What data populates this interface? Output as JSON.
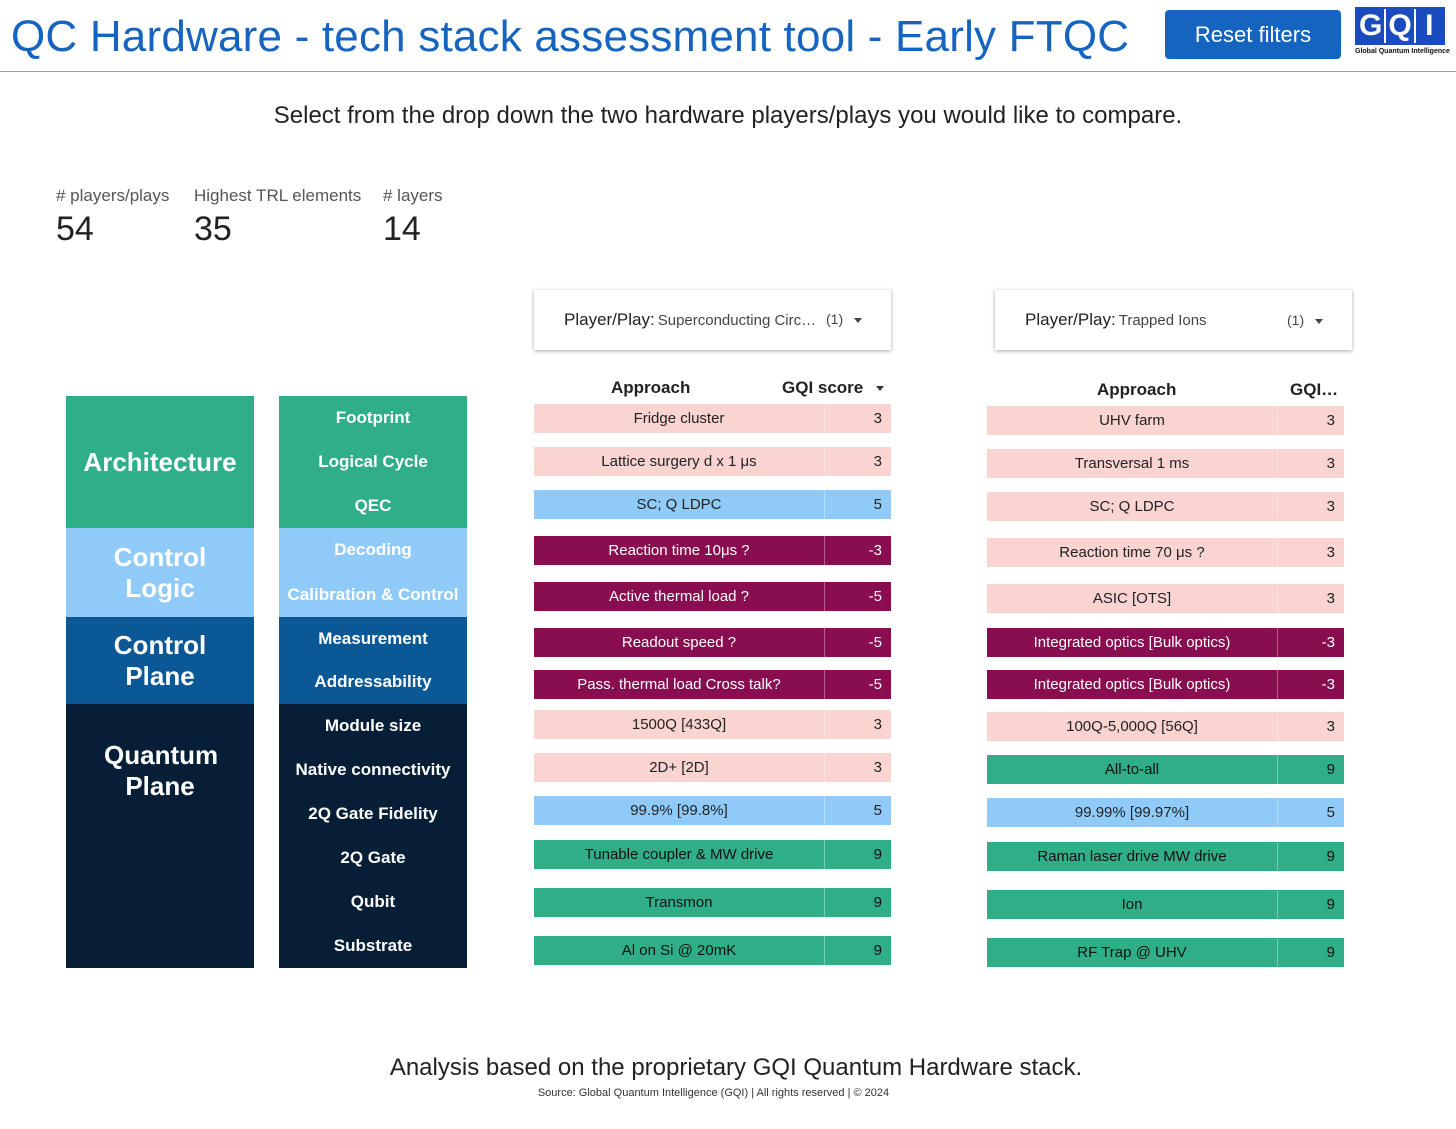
{
  "header": {
    "title": "QC Hardware - tech stack assessment tool - Early FTQC",
    "reset_label": "Reset filters",
    "logo_letters": [
      "G",
      "Q",
      "I"
    ],
    "logo_subtitle": "Global Quantum Intelligence"
  },
  "instruction": "Select from the drop down the two hardware players/plays you would like to compare.",
  "kpis": [
    {
      "label": "# players/plays",
      "value": "54"
    },
    {
      "label": "Highest TRL elements",
      "value": "35"
    },
    {
      "label": "# layers",
      "value": "14"
    }
  ],
  "stack": {
    "layers": [
      {
        "label": "Architecture",
        "sublayers": [
          "Footprint",
          "Logical Cycle",
          "QEC"
        ],
        "color": "#2fae87"
      },
      {
        "label": "Control Logic",
        "sublayers": [
          "Decoding",
          "Calibration & Control"
        ],
        "color": "#90caf9"
      },
      {
        "label": "Control Plane",
        "sublayers": [
          "Measurement",
          "Addressability"
        ],
        "color": "#0a5896"
      },
      {
        "label": "Quantum Plane",
        "sublayers": [
          "Module size",
          "Native connectivity",
          "2Q Gate Fidelity",
          "2Q Gate",
          "Qubit",
          "Substrate"
        ],
        "color": "#061e36"
      }
    ]
  },
  "colors": {
    "accent": "#1565c0",
    "score_low": "#fad4d0",
    "score_mid": "#90caf9",
    "score_negative": "#880e4f",
    "score_high": "#2fae87"
  },
  "left_panel": {
    "selector": {
      "prefix": "Player/Play",
      "value": "Superconducting Circ…",
      "count": "(1)"
    },
    "headers": {
      "approach": "Approach",
      "score": "GQI score"
    },
    "rows": [
      {
        "approach": "Fridge cluster",
        "score": "3"
      },
      {
        "approach": "Lattice surgery d x 1 μs",
        "score": "3"
      },
      {
        "approach": "SC; Q LDPC",
        "score": "5"
      },
      {
        "approach": "Reaction time 10μs ?",
        "score": "-3"
      },
      {
        "approach": "Active thermal load ?",
        "score": "-5"
      },
      {
        "approach": "Readout speed ?",
        "score": "-5"
      },
      {
        "approach": "Pass. thermal load Cross talk?",
        "score": "-5"
      },
      {
        "approach": "1500Q [433Q]",
        "score": "3"
      },
      {
        "approach": "2D+ [2D]",
        "score": "3"
      },
      {
        "approach": "99.9% [99.8%]",
        "score": "5"
      },
      {
        "approach": "Tunable coupler & MW drive",
        "score": "9"
      },
      {
        "approach": "Transmon",
        "score": "9"
      },
      {
        "approach": "Al on Si @ 20mK",
        "score": "9"
      }
    ]
  },
  "right_panel": {
    "selector": {
      "prefix": "Player/Play",
      "value": "Trapped Ions",
      "count": "(1)"
    },
    "headers": {
      "approach": "Approach",
      "score": "GQI…"
    },
    "rows": [
      {
        "approach": "UHV farm",
        "score": "3"
      },
      {
        "approach": "Transversal 1 ms",
        "score": "3"
      },
      {
        "approach": "SC; Q LDPC",
        "score": "3"
      },
      {
        "approach": "Reaction time 70 μs ?",
        "score": "3"
      },
      {
        "approach": "ASIC [OTS]",
        "score": "3"
      },
      {
        "approach": "Integrated optics [Bulk optics)",
        "score": "-3"
      },
      {
        "approach": "Integrated optics [Bulk optics)",
        "score": "-3"
      },
      {
        "approach": "100Q-5,000Q [56Q]",
        "score": "3"
      },
      {
        "approach": "All-to-all",
        "score": "9"
      },
      {
        "approach": "99.99% [99.97%]",
        "score": "5"
      },
      {
        "approach": "Raman laser drive MW drive",
        "score": "9"
      },
      {
        "approach": "Ion",
        "score": "9"
      },
      {
        "approach": "RF Trap @ UHV",
        "score": "9"
      }
    ]
  },
  "footer": {
    "main": "Analysis based on the proprietary GQI Quantum Hardware stack.",
    "source": "Source: Global Quantum Intelligence (GQI) | All rights reserved | © 2024"
  }
}
